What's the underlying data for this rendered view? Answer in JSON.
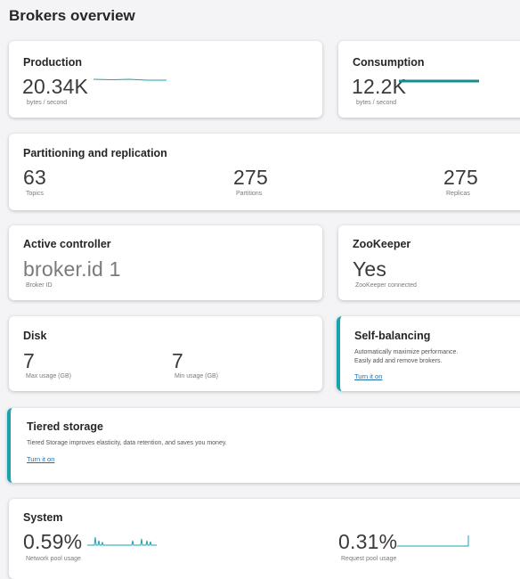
{
  "page": {
    "title": "Brokers overview"
  },
  "production": {
    "title": "Production",
    "value": "20.34K",
    "unit": "bytes / second"
  },
  "consumption": {
    "title": "Consumption",
    "value": "12.2K",
    "unit": "bytes / second"
  },
  "partitioning": {
    "title": "Partitioning and replication",
    "topics": {
      "value": "63",
      "label": "Topics"
    },
    "partitions": {
      "value": "275",
      "label": "Partitions"
    },
    "replicas": {
      "value": "275",
      "label": "Replicas"
    }
  },
  "controller": {
    "title": "Active controller",
    "value": "broker.id 1",
    "label": "Broker ID"
  },
  "zookeeper": {
    "title": "ZooKeeper",
    "value": "Yes",
    "label": "ZooKeeper connected"
  },
  "disk": {
    "title": "Disk",
    "max": {
      "value": "7",
      "label": "Max usage (GB)"
    },
    "min": {
      "value": "7",
      "label": "Min usage (GB)"
    }
  },
  "self_balancing": {
    "title": "Self-balancing",
    "desc_line1": "Automatically maximize performance.",
    "desc_line2": "Easily add and remove brokers.",
    "link": "Turn it on"
  },
  "tiered_storage": {
    "title": "Tiered storage",
    "desc": "Tiered Storage improves elasticity, data retention, and saves you money.",
    "link": "Turn it on"
  },
  "system": {
    "title": "System",
    "network": {
      "value": "0.59%",
      "label": "Network pool usage"
    },
    "request": {
      "value": "0.31%",
      "label": "Request pool usage"
    }
  },
  "colors": {
    "accent": "#1aa3ad",
    "link": "#1f6fb0"
  }
}
